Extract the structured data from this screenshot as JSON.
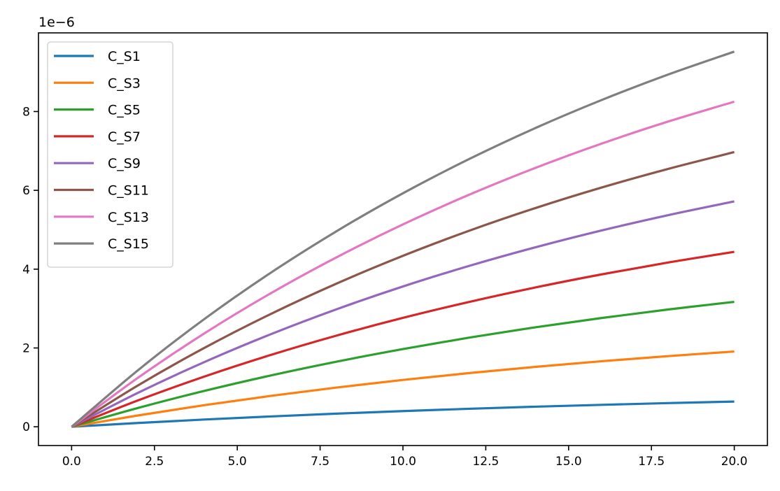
{
  "chart_data": {
    "type": "line",
    "title": "",
    "xlabel": "",
    "ylabel": "",
    "y_offset_label": "1e−6",
    "xlim": [
      -1.0,
      21.0
    ],
    "ylim": [
      -0.476,
      9.996
    ],
    "xticks": [
      0,
      2.5,
      5,
      7.5,
      10,
      12.5,
      15,
      17.5,
      20
    ],
    "xtick_labels": [
      "0.0",
      "2.5",
      "5.0",
      "7.5",
      "10.0",
      "12.5",
      "15.0",
      "17.5",
      "20.0"
    ],
    "yticks": [
      0,
      2,
      4,
      6,
      8
    ],
    "ytick_labels": [
      "0",
      "2",
      "4",
      "6",
      "8"
    ],
    "grid": false,
    "legend_placement": "top-left",
    "x": [
      0,
      2,
      4,
      6,
      8,
      10,
      12,
      14,
      16,
      18,
      20
    ],
    "series": [
      {
        "name": "C_S1",
        "color": "#1f77b4",
        "values": [
          0,
          0.096,
          0.184,
          0.262,
          0.334,
          0.398,
          0.457,
          0.51,
          0.557,
          0.601,
          0.64
        ]
      },
      {
        "name": "C_S3",
        "color": "#ff7f0e",
        "values": [
          0,
          0.287,
          0.548,
          0.783,
          0.996,
          1.189,
          1.363,
          1.521,
          1.664,
          1.793,
          1.91
        ]
      },
      {
        "name": "C_S5",
        "color": "#2ca02c",
        "values": [
          0,
          0.477,
          0.909,
          1.3,
          1.653,
          1.973,
          2.263,
          2.525,
          2.761,
          2.976,
          3.17
        ]
      },
      {
        "name": "C_S7",
        "color": "#d62728",
        "values": [
          0,
          0.668,
          1.273,
          1.82,
          2.315,
          2.764,
          3.169,
          3.536,
          3.868,
          4.168,
          4.44
        ]
      },
      {
        "name": "C_S9",
        "color": "#9467bd",
        "values": [
          0,
          0.861,
          1.64,
          2.345,
          2.983,
          3.561,
          4.083,
          4.555,
          4.983,
          5.37,
          5.72
        ]
      },
      {
        "name": "C_S11",
        "color": "#8c564b",
        "values": [
          0,
          1.049,
          1.999,
          2.858,
          3.635,
          4.339,
          4.975,
          5.551,
          6.072,
          6.543,
          6.97
        ]
      },
      {
        "name": "C_S13",
        "color": "#e377c2",
        "values": [
          0,
          1.242,
          2.366,
          3.383,
          4.302,
          5.136,
          5.889,
          6.57,
          7.187,
          7.745,
          8.25
        ]
      },
      {
        "name": "C_S15",
        "color": "#7f7f7f",
        "values": [
          0,
          1.433,
          2.73,
          3.903,
          4.965,
          5.926,
          6.795,
          7.582,
          8.293,
          8.937,
          9.52
        ]
      }
    ]
  }
}
